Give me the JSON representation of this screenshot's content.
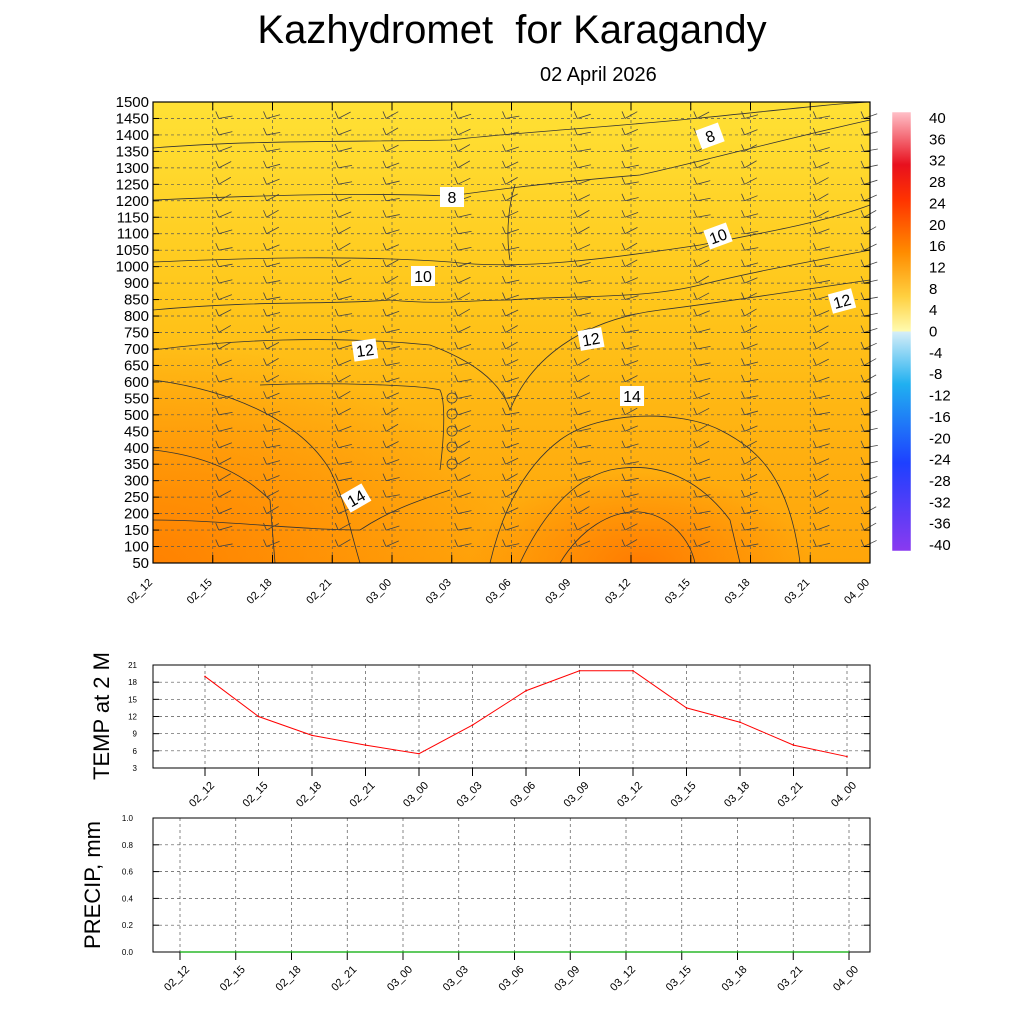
{
  "page": {
    "title": "Kazhydromet  for Karagandy",
    "date": "02 April 2026"
  },
  "chart_data": [
    {
      "type": "heatmap",
      "time_labels": [
        "02_12",
        "02_15",
        "02_18",
        "02_21",
        "03_00",
        "03_03",
        "03_06",
        "03_09",
        "03_12",
        "03_15",
        "03_18",
        "03_21",
        "04_00"
      ],
      "y_ticks": [
        50,
        100,
        150,
        200,
        250,
        300,
        350,
        400,
        450,
        500,
        550,
        600,
        650,
        700,
        750,
        800,
        850,
        900,
        1000,
        1050,
        1100,
        1150,
        1200,
        1250,
        1300,
        1350,
        1400,
        1450,
        1500
      ],
      "colorbar_ticks": [
        40,
        36,
        32,
        28,
        24,
        20,
        16,
        12,
        8,
        4,
        0,
        -4,
        -8,
        -12,
        -16,
        -20,
        -24,
        -28,
        -32,
        -36,
        -40
      ],
      "contour_labels": [
        "8",
        "8",
        "10",
        "10",
        "12",
        "12",
        "12",
        "14",
        "14"
      ],
      "grid": true,
      "colors": {
        "warm_low": "#ff8c00",
        "warm_high": "#ffe033",
        "contour": "#333333",
        "wind_barb": "#444444"
      }
    },
    {
      "type": "line",
      "ylabel": "TEMP at 2 M",
      "y_ticks": [
        3,
        6,
        9,
        12,
        15,
        18,
        21
      ],
      "ylim": [
        3,
        21
      ],
      "x": [
        "02_12",
        "02_15",
        "02_18",
        "02_21",
        "03_00",
        "03_03",
        "03_06",
        "03_09",
        "03_12",
        "03_15",
        "03_18",
        "03_21",
        "04_00"
      ],
      "series": [
        {
          "values": [
            19,
            12,
            8.7,
            7,
            5.5,
            10.5,
            16.5,
            20,
            20,
            13.5,
            11,
            7,
            5
          ],
          "color": "#ff0000"
        }
      ],
      "grid": true
    },
    {
      "type": "line",
      "ylabel": "PRECIP, mm",
      "y_ticks": [
        "0.0",
        "0.2",
        "0.4",
        "0.6",
        "0.8",
        "1.0"
      ],
      "ylim": [
        0,
        1
      ],
      "x": [
        "02_12",
        "02_15",
        "02_18",
        "02_21",
        "03_00",
        "03_03",
        "03_06",
        "03_09",
        "03_12",
        "03_15",
        "03_18",
        "03_21",
        "04_00"
      ],
      "series": [
        {
          "values": [
            0,
            0,
            0,
            0,
            0,
            0,
            0,
            0,
            0,
            0,
            0,
            0,
            0
          ],
          "color": "#00aa00"
        }
      ],
      "grid": true
    }
  ]
}
